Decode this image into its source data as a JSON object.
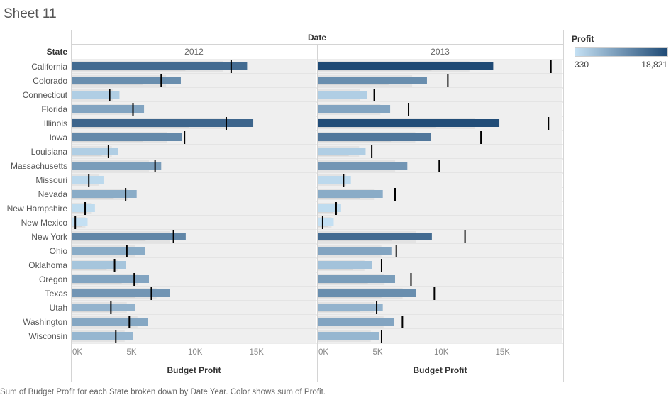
{
  "sheet_title": "Sheet 11",
  "header": {
    "date_label": "Date",
    "state_label": "State"
  },
  "legend": {
    "title": "Profit",
    "min_label": "330",
    "max_label": "18,821",
    "color_low": "#c4e0f3",
    "color_high": "#1f4a75"
  },
  "caption": "Sum of Budget Profit for each State broken down by Date Year.  Color shows sum of Profit.",
  "chart_data": {
    "type": "bar",
    "subtype": "bullet",
    "x_axis_title": "Budget Profit",
    "x_ticks": [
      "0K",
      "5K",
      "10K",
      "15K"
    ],
    "xlim": [
      0,
      20000
    ],
    "panels": [
      "2012",
      "2013"
    ],
    "reference_band_colors": [
      "#efefef",
      "#e3e3e3",
      "#d6d6d6",
      "#cbcbcb"
    ],
    "marker_color": "#000000",
    "states": [
      "California",
      "Colorado",
      "Connecticut",
      "Florida",
      "Illinois",
      "Iowa",
      "Louisiana",
      "Massachusetts",
      "Missouri",
      "Nevada",
      "New Hampshire",
      "New Mexico",
      "New York",
      "Ohio",
      "Oklahoma",
      "Oregon",
      "Texas",
      "Utah",
      "Washington",
      "Wisconsin"
    ],
    "series": [
      {
        "name": "2012",
        "budget_profit": [
          14300,
          8900,
          3900,
          5900,
          14800,
          9000,
          3800,
          7300,
          2600,
          5300,
          1900,
          1300,
          9300,
          6000,
          4400,
          6300,
          8000,
          5200,
          6200,
          5000
        ],
        "profit_color": [
          0.78,
          0.55,
          0.12,
          0.4,
          0.82,
          0.58,
          0.12,
          0.45,
          0.05,
          0.35,
          0.03,
          0.0,
          0.6,
          0.35,
          0.18,
          0.4,
          0.5,
          0.3,
          0.38,
          0.28
        ],
        "marker": [
          13000,
          7300,
          3100,
          5000,
          12600,
          9200,
          3000,
          6800,
          1400,
          4400,
          1100,
          300,
          8300,
          4500,
          3500,
          5100,
          6500,
          3200,
          4700,
          3600
        ]
      },
      {
        "name": "2013",
        "budget_profit": [
          14300,
          8900,
          4000,
          5900,
          14800,
          9200,
          3900,
          7300,
          2700,
          5300,
          1900,
          1300,
          9300,
          6000,
          4400,
          6300,
          8000,
          5300,
          6200,
          5000
        ],
        "profit_color": [
          1.0,
          0.55,
          0.12,
          0.4,
          0.98,
          0.7,
          0.12,
          0.5,
          0.05,
          0.35,
          0.03,
          0.0,
          0.78,
          0.4,
          0.2,
          0.45,
          0.55,
          0.3,
          0.4,
          0.28
        ],
        "marker": [
          19000,
          10600,
          4600,
          7400,
          18800,
          13300,
          4400,
          9900,
          2100,
          6300,
          1500,
          400,
          12000,
          6400,
          5200,
          7600,
          9500,
          4800,
          6900,
          5200
        ]
      }
    ]
  }
}
